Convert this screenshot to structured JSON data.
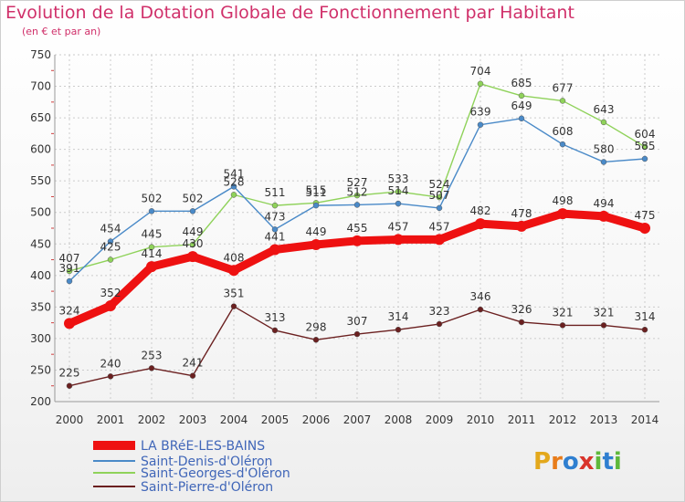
{
  "title": "Evolution de la Dotation Globale de Fonctionnement par Habitant",
  "subtitle": "(en € et par an)",
  "logo": {
    "letters": [
      "P",
      "r",
      "o",
      "x",
      "i",
      "t",
      "i"
    ],
    "colors": [
      "#e3a81c",
      "#e87c1a",
      "#2f7fd0",
      "#d9342b",
      "#5fb83b",
      "#2f7fd0",
      "#5fb83b"
    ]
  },
  "chart_data": {
    "type": "line",
    "x": [
      "2000",
      "2001",
      "2002",
      "2003",
      "2004",
      "2005",
      "2006",
      "2007",
      "2008",
      "2009",
      "2010",
      "2011",
      "2012",
      "2013",
      "2014"
    ],
    "ylim": [
      200,
      750
    ],
    "yticks": [
      200,
      250,
      300,
      350,
      400,
      450,
      500,
      550,
      600,
      650,
      700,
      750
    ],
    "grid": true,
    "legend_position": "bottom-left",
    "series": [
      {
        "name": "Saint-Pierre-d'Oléron",
        "color": "#6b2020",
        "values": [
          225,
          240,
          253,
          241,
          351,
          313,
          298,
          307,
          314,
          323,
          346,
          326,
          321,
          321,
          314
        ]
      },
      {
        "name": "Saint-Georges-d'Oléron",
        "color": "#8fd25a",
        "values": [
          407,
          425,
          445,
          449,
          528,
          511,
          515,
          527,
          533,
          524,
          704,
          685,
          677,
          643,
          604
        ]
      },
      {
        "name": "Saint-Denis-d'Oléron",
        "color": "#4a8ac8",
        "values": [
          391,
          454,
          502,
          502,
          541,
          473,
          511,
          512,
          514,
          507,
          639,
          649,
          608,
          580,
          585
        ]
      },
      {
        "name": "LA BRéE-LES-BAINS",
        "color": "#ee1111",
        "values": [
          324,
          352,
          414,
          430,
          408,
          441,
          449,
          455,
          457,
          457,
          482,
          478,
          498,
          494,
          475
        ]
      }
    ],
    "legend": [
      "LA BRéE-LES-BAINS",
      "Saint-Denis-d'Oléron",
      "Saint-Georges-d'Oléron",
      "Saint-Pierre-d'Oléron"
    ]
  }
}
